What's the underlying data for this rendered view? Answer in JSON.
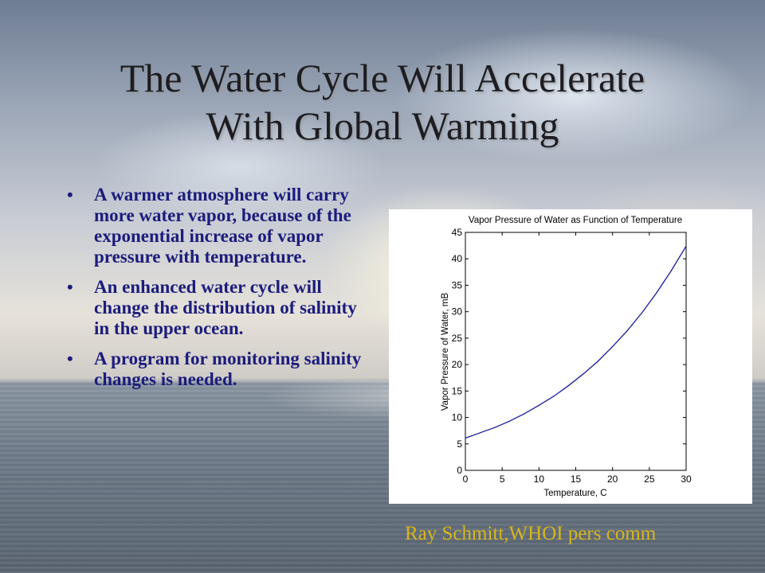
{
  "slide": {
    "title_line1": "The Water Cycle Will Accelerate",
    "title_line2": "With Global Warming",
    "bullets": [
      "A warmer atmosphere will carry more water vapor, because of the exponential increase of vapor pressure with temperature.",
      "An enhanced water cycle will change the distribution of salinity in the upper ocean.",
      "A program for monitoring salinity changes is needed."
    ],
    "bullet_symbol": "•",
    "credit": "Ray Schmitt,WHOI pers comm"
  },
  "colors": {
    "title": "#1d1d22",
    "bullet_text": "#1c1c7c",
    "credit": "#d8b61a",
    "curve": "#1a1a9c"
  },
  "chart_data": {
    "type": "line",
    "title": "Vapor Pressure of Water as Function of Temperature",
    "xlabel": "Temperature, C",
    "ylabel": "Vapor Pressure of Water, mB",
    "xlim": [
      0,
      30
    ],
    "ylim": [
      0,
      45
    ],
    "xticks": [
      0,
      5,
      10,
      15,
      20,
      25,
      30
    ],
    "yticks": [
      0,
      5,
      10,
      15,
      20,
      25,
      30,
      35,
      40,
      45
    ],
    "grid": false,
    "series": [
      {
        "x": [
          0,
          2,
          4,
          6,
          8,
          10,
          12,
          14,
          16,
          18,
          20,
          22,
          24,
          26,
          28,
          30
        ],
        "y": [
          6.1,
          7.1,
          8.1,
          9.3,
          10.7,
          12.3,
          14.0,
          16.0,
          18.2,
          20.6,
          23.4,
          26.4,
          29.8,
          33.6,
          37.8,
          42.4
        ]
      }
    ]
  }
}
